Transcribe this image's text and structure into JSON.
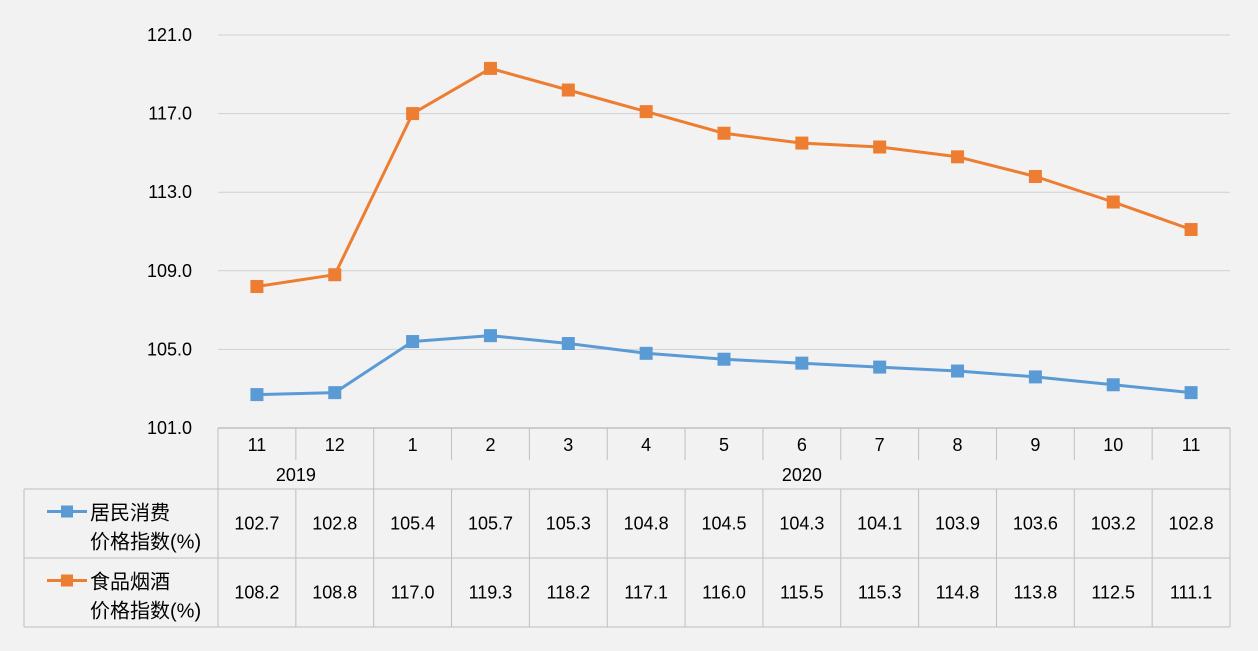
{
  "chart_data": {
    "type": "line",
    "y_ticks": [
      "101.0",
      "105.0",
      "109.0",
      "113.0",
      "117.0",
      "121.0"
    ],
    "ylim": [
      101,
      121
    ],
    "categories": [
      "11",
      "12",
      "1",
      "2",
      "3",
      "4",
      "5",
      "6",
      "7",
      "8",
      "9",
      "10",
      "11"
    ],
    "years": [
      {
        "label": "2019",
        "start": 0,
        "count": 2
      },
      {
        "label": "2020",
        "start": 2,
        "count": 11
      }
    ],
    "grid": true,
    "legend_placement": "data-table",
    "series": [
      {
        "name_line1": "居民消费",
        "name_line2": "价格指数(%)",
        "color": "#5b9bd5",
        "values": [
          102.7,
          102.8,
          105.4,
          105.7,
          105.3,
          104.8,
          104.5,
          104.3,
          104.1,
          103.9,
          103.6,
          103.2,
          102.8
        ],
        "labels": [
          "102.7",
          "102.8",
          "105.4",
          "105.7",
          "105.3",
          "104.8",
          "104.5",
          "104.3",
          "104.1",
          "103.9",
          "103.6",
          "103.2",
          "102.8"
        ]
      },
      {
        "name_line1": "食品烟酒",
        "name_line2": "价格指数(%)",
        "color": "#ed7d31",
        "values": [
          108.2,
          108.8,
          117.0,
          119.3,
          118.2,
          117.1,
          116.0,
          115.5,
          115.3,
          114.8,
          113.8,
          112.5,
          111.1
        ],
        "labels": [
          "108.2",
          "108.8",
          "117.0",
          "119.3",
          "118.2",
          "117.1",
          "116.0",
          "115.5",
          "115.3",
          "114.8",
          "113.8",
          "112.5",
          "111.1"
        ]
      }
    ]
  }
}
